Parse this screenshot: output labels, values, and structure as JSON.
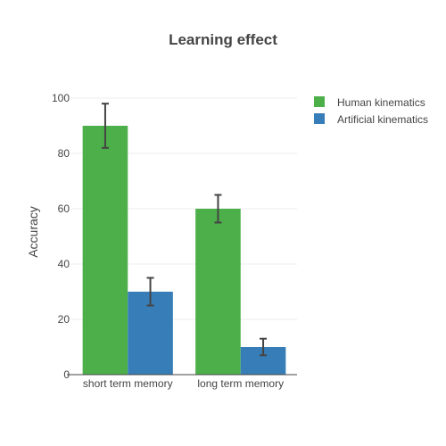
{
  "chart_data": {
    "type": "bar",
    "title": "Learning effect",
    "xlabel": "",
    "ylabel": "Accuracy",
    "categories": [
      "short term memory",
      "long term memory"
    ],
    "series": [
      {
        "name": "Human kinematics",
        "color": "#4daf4a",
        "values": [
          90,
          60
        ],
        "errors": [
          8,
          5
        ]
      },
      {
        "name": "Artificial kinematics",
        "color": "#377eb8",
        "values": [
          30,
          10
        ],
        "errors": [
          5,
          3
        ]
      }
    ],
    "ylim": [
      0,
      100
    ],
    "yticks": [
      0,
      20,
      40,
      60,
      80,
      100
    ],
    "grid": true,
    "legend_position": "top-right"
  }
}
